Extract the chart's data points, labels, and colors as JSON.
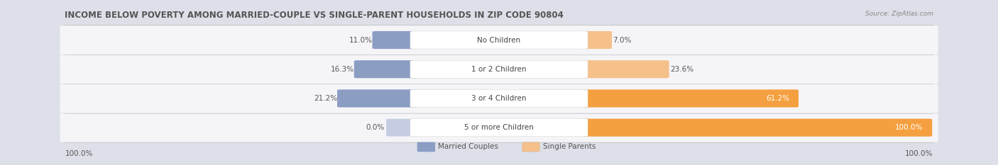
{
  "title": "INCOME BELOW POVERTY AMONG MARRIED-COUPLE VS SINGLE-PARENT HOUSEHOLDS IN ZIP CODE 90804",
  "source": "Source: ZipAtlas.com",
  "categories": [
    "No Children",
    "1 or 2 Children",
    "3 or 4 Children",
    "5 or more Children"
  ],
  "married_values": [
    11.0,
    16.3,
    21.2,
    0.0
  ],
  "single_values": [
    7.0,
    23.6,
    61.2,
    100.0
  ],
  "married_color": "#8b9dc3",
  "married_color_zero": "#c5cde3",
  "single_color_low": "#f5c08a",
  "single_color_high": "#f5a040",
  "row_bg_color": "#f0f0f0",
  "chart_bg_color": "#e0e0e8",
  "title_color": "#555555",
  "label_color": "#555555",
  "source_color": "#888888",
  "title_fontsize": 8.5,
  "label_fontsize": 7.5,
  "category_fontsize": 7.5,
  "axis_max": 100.0,
  "left_label": "100.0%",
  "right_label": "100.0%",
  "legend_married": "Married Couples",
  "legend_single": "Single Parents"
}
